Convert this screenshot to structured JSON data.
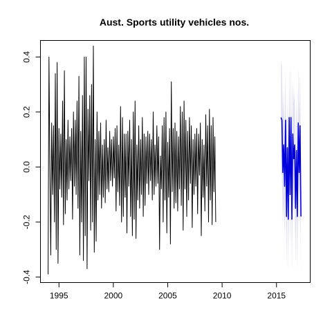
{
  "chart_data": {
    "type": "line",
    "title": "Aust. Sports utility vehicles nos.",
    "xlabel": "",
    "ylabel": "",
    "xlim": [
      1993.3,
      2018.1
    ],
    "ylim": [
      -0.42,
      0.46
    ],
    "x_ticks": [
      1995,
      2000,
      2005,
      2010,
      2015
    ],
    "y_ticks": [
      -0.4,
      -0.2,
      0.0,
      0.2,
      0.4
    ],
    "x_tick_labels": [
      "1995",
      "2000",
      "2005",
      "2010",
      "2015"
    ],
    "y_tick_labels": [
      "-0.4",
      "-0.2",
      "0.0",
      "0.2",
      "0.4"
    ],
    "grid": false,
    "series": [
      {
        "role": "observed",
        "color": "#000000",
        "x_start": 1994.0,
        "x_step": 0.0833333,
        "values": [
          -0.39,
          0.4,
          0.0,
          -0.32,
          0.16,
          -0.1,
          0.15,
          -0.2,
          0.34,
          -0.3,
          0.38,
          -0.35,
          0.14,
          -0.08,
          0.12,
          -0.11,
          0.24,
          -0.21,
          0.35,
          -0.17,
          0.1,
          -0.12,
          0.17,
          -0.08,
          0.11,
          -0.05,
          0.14,
          -0.19,
          0.2,
          -0.07,
          0.17,
          -0.1,
          0.24,
          -0.15,
          0.33,
          -0.32,
          0.13,
          -0.2,
          0.26,
          -0.34,
          0.4,
          -0.25,
          0.4,
          -0.37,
          0.21,
          -0.05,
          0.26,
          -0.23,
          0.3,
          -0.2,
          0.44,
          -0.31,
          0.1,
          -0.27,
          0.2,
          -0.12,
          0.13,
          -0.1,
          0.16,
          -0.15,
          0.08,
          -0.11,
          0.1,
          -0.13,
          0.17,
          -0.08,
          0.07,
          -0.09,
          0.13,
          -0.05,
          0.1,
          -0.07,
          0.11,
          -0.04,
          0.14,
          -0.16,
          0.15,
          -0.09,
          0.08,
          -0.14,
          0.22,
          -0.2,
          0.18,
          -0.18,
          0.12,
          -0.11,
          0.12,
          -0.24,
          0.13,
          -0.07,
          0.17,
          -0.18,
          0.1,
          -0.25,
          0.2,
          -0.19,
          0.24,
          -0.26,
          0.08,
          -0.12,
          0.15,
          -0.15,
          0.1,
          -0.1,
          0.18,
          -0.18,
          0.12,
          -0.14,
          0.11,
          -0.06,
          0.13,
          -0.1,
          0.12,
          -0.05,
          0.1,
          -0.12,
          0.2,
          -0.1,
          0.08,
          -0.07,
          0.15,
          -0.06,
          0.11,
          -0.3,
          0.04,
          -0.08,
          0.15,
          -0.2,
          0.18,
          -0.12,
          0.2,
          -0.24,
          0.09,
          -0.11,
          0.14,
          -0.28,
          0.31,
          -0.09,
          0.14,
          -0.15,
          0.16,
          -0.13,
          0.13,
          -0.16,
          0.11,
          -0.08,
          0.22,
          -0.14,
          0.2,
          -0.23,
          0.24,
          -0.08,
          0.17,
          -0.18,
          0.13,
          -0.12,
          0.18,
          -0.06,
          0.15,
          -0.22,
          0.1,
          -0.1,
          0.12,
          -0.07,
          0.14,
          -0.17,
          0.12,
          -0.03,
          0.16,
          -0.25,
          0.1,
          -0.11,
          0.08,
          -0.16,
          0.19,
          -0.07,
          0.15,
          -0.2,
          0.21,
          -0.12,
          0.15,
          -0.21,
          0.18,
          -0.09,
          0.11,
          -0.2
        ]
      },
      {
        "role": "forecast",
        "color": "#0000dd",
        "interval_color": "#c8c8ea",
        "x_start": 2015.4167,
        "x_step": 0.0833333,
        "values": [
          0.18,
          0.17,
          -0.02,
          0.08,
          -0.07,
          0.17,
          -0.18,
          0.07,
          -0.19,
          0.18,
          -0.1,
          0.18,
          -0.19,
          0.12,
          0.03,
          0.08,
          -0.15,
          0.06,
          -0.18,
          0.16,
          -0.02,
          0.15,
          -0.18
        ],
        "half_width": [
          0.2,
          0.2,
          0.2,
          0.2,
          0.19,
          0.19,
          0.19,
          0.19,
          0.19,
          0.19,
          0.19,
          0.19,
          0.2,
          0.2,
          0.2,
          0.2,
          0.2,
          0.2,
          0.2,
          0.2,
          0.2,
          0.2,
          0.2
        ]
      }
    ]
  }
}
